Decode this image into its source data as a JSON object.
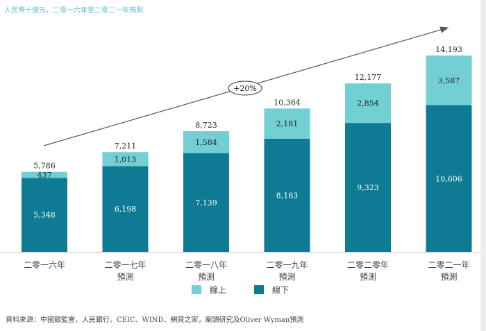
{
  "chart_data": {
    "type": "bar",
    "stacked": true,
    "title": "人民幣十億元，二零一六年至二零二一年預測",
    "categories": [
      [
        "二零一六年"
      ],
      [
        "二零一七年",
        "預測"
      ],
      [
        "二零一八年",
        "預測"
      ],
      [
        "二零一九年",
        "預測"
      ],
      [
        "二零二零年",
        "預測"
      ],
      [
        "二零二一年",
        "預測"
      ]
    ],
    "series": [
      {
        "name": "線下",
        "color": "#0e7a94",
        "values": [
          5348,
          6198,
          7139,
          8183,
          9323,
          10606
        ],
        "labels": [
          "5,348",
          "6,198",
          "7,139",
          "8,183",
          "9,323",
          "10,606"
        ]
      },
      {
        "name": "線上",
        "color": "#72cfd4",
        "values": [
          437,
          1013,
          1584,
          2181,
          2854,
          3587
        ],
        "labels": [
          "437",
          "1,013",
          "1,584",
          "2,181",
          "2,854",
          "3,587"
        ]
      }
    ],
    "totals": [
      5786,
      7211,
      8723,
      10364,
      12177,
      14193
    ],
    "total_labels": [
      "5,786",
      "7,211",
      "8,723",
      "10,364",
      "12,177",
      "14,193"
    ],
    "annotation": "+20%",
    "ylim": [
      0,
      14193
    ],
    "legend": [
      {
        "label": "線上",
        "color": "#72cfd4"
      },
      {
        "label": "線下",
        "color": "#0e7a94"
      }
    ],
    "legend_position": "bottom",
    "source": "資料來源：中國銀監會，人民銀行、CEIC、WIND、網貸之家，案頭研究及Oliver Wyman預測"
  }
}
